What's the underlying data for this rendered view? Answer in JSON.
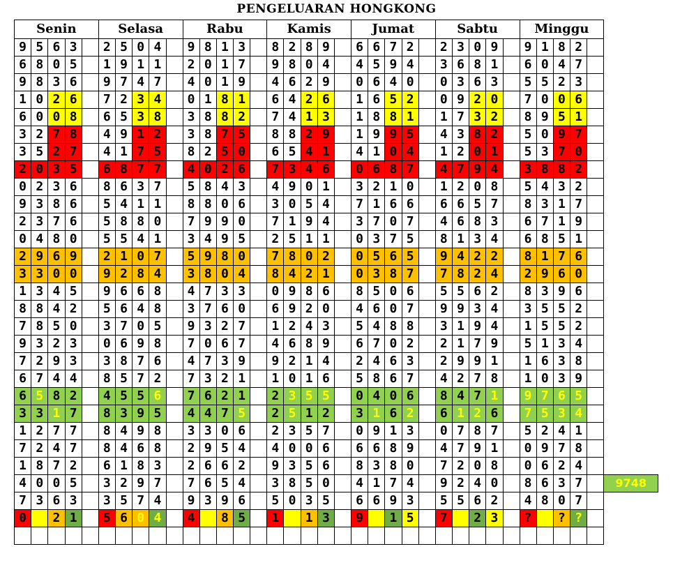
{
  "title": "PENGELUARAN HONGKONG",
  "days": [
    "Senin",
    "Selasa",
    "Rabu",
    "Kamis",
    "Jumat",
    "Sabtu",
    "Minggu"
  ],
  "colors": {
    "red": "#ff0000",
    "yellow": "#ffff00",
    "orange": "#ffc000",
    "green": "#70ad47",
    "light_green": "#92d050"
  },
  "rows": [
    [
      "9563",
      "2504",
      "9813",
      "8289",
      "6672",
      "2309",
      "9182"
    ],
    [
      "6805",
      "1911",
      "2017",
      "9804",
      "4594",
      "3681",
      "6047"
    ],
    [
      "9836",
      "9747",
      "4019",
      "4629",
      "0640",
      "0363",
      "5523"
    ],
    [
      "1026",
      "7234",
      "0181",
      "6426",
      "1652",
      "0920",
      "7006"
    ],
    [
      "6008",
      "6538",
      "3882",
      "7413",
      "1881",
      "1732",
      "8951"
    ],
    [
      "3278",
      "4912",
      "3875",
      "8829",
      "1995",
      "4382",
      "5097"
    ],
    [
      "3527",
      "4175",
      "8250",
      "6541",
      "4104",
      "1201",
      "5370"
    ],
    [
      "2035",
      "6877",
      "4026",
      "7346",
      "0687",
      "4794",
      "3882"
    ],
    [
      "0236",
      "8637",
      "5843",
      "4901",
      "3210",
      "1208",
      "5432"
    ],
    [
      "9386",
      "5411",
      "8806",
      "3054",
      "7166",
      "6657",
      "8317"
    ],
    [
      "2376",
      "5880",
      "7990",
      "7194",
      "3707",
      "4683",
      "6719"
    ],
    [
      "0480",
      "5541",
      "3495",
      "2511",
      "0375",
      "8134",
      "6851"
    ],
    [
      "2969",
      "2107",
      "5980",
      "7802",
      "0565",
      "9422",
      "8176"
    ],
    [
      "3300",
      "9284",
      "3804",
      "8421",
      "0387",
      "7824",
      "2960"
    ],
    [
      "1345",
      "9668",
      "4733",
      "0986",
      "8506",
      "5562",
      "8396"
    ],
    [
      "8842",
      "5648",
      "3760",
      "6920",
      "4607",
      "9934",
      "3552"
    ],
    [
      "7850",
      "3705",
      "9327",
      "1243",
      "5488",
      "3194",
      "1552"
    ],
    [
      "9323",
      "0698",
      "7067",
      "4689",
      "6702",
      "2179",
      "5134"
    ],
    [
      "7293",
      "3876",
      "4739",
      "9214",
      "2463",
      "2991",
      "1638"
    ],
    [
      "6744",
      "8572",
      "7321",
      "1016",
      "5867",
      "4278",
      "1039"
    ],
    [
      "6582",
      "4556",
      "7621",
      "2355",
      "0406",
      "8471",
      "9765"
    ],
    [
      "3317",
      "8395",
      "4475",
      "2512",
      "3162",
      "6126",
      "7534"
    ],
    [
      "1277",
      "8498",
      "3306",
      "2357",
      "0913",
      "0787",
      "5241"
    ],
    [
      "7247",
      "8468",
      "2954",
      "4006",
      "6689",
      "4791",
      "0978"
    ],
    [
      "1872",
      "6183",
      "2662",
      "9356",
      "8380",
      "7208",
      "0624"
    ],
    [
      "4005",
      "3297",
      "7654",
      "3850",
      "4174",
      "9240",
      "8637"
    ],
    [
      "7363",
      "3574",
      "9396",
      "5035",
      "6693",
      "5562",
      "4807"
    ],
    [
      "0521",
      "5604",
      "4585",
      "1513",
      "9215",
      "7123",
      "????"
    ],
    [
      "",
      "",
      "",
      "",
      "",
      "",
      ""
    ]
  ],
  "prediction": "9748",
  "cell_styles": [
    {
      "row": 3,
      "digits": [
        2,
        3
      ],
      "bg": "y"
    },
    {
      "row": 4,
      "digits": [
        2,
        3
      ],
      "bg": "y"
    },
    {
      "row": 5,
      "digits": [
        2,
        3
      ],
      "bg": "r"
    },
    {
      "row": 6,
      "digits": [
        2,
        3
      ],
      "bg": "r"
    },
    {
      "row": 7,
      "digits": [
        0,
        1,
        2,
        3
      ],
      "bg": "r"
    },
    {
      "row": 12,
      "digits": [
        0,
        1,
        2,
        3
      ],
      "bg": "o"
    },
    {
      "row": 13,
      "digits": [
        0,
        1,
        2,
        3
      ],
      "bg": "o"
    },
    {
      "row": 20,
      "digits": [
        0,
        1,
        2,
        3
      ],
      "bg": "lg"
    },
    {
      "row": 21,
      "digits": [
        0,
        1,
        2,
        3
      ],
      "bg": "lg"
    }
  ],
  "yellow_text": {
    "20": [
      [
        0,
        1
      ],
      [
        1,
        3
      ],
      [
        2,
        -1
      ],
      [
        3,
        1,
        2,
        3
      ],
      [
        4,
        -1
      ],
      [
        5,
        3
      ],
      [
        6,
        0,
        1,
        2,
        3
      ]
    ],
    "21": [
      [
        0,
        2
      ],
      [
        1,
        -1
      ],
      [
        2,
        3
      ],
      [
        3,
        1
      ],
      [
        4,
        1,
        3
      ],
      [
        5,
        1,
        2
      ],
      [
        6,
        0,
        1,
        2,
        3
      ]
    ]
  },
  "last_row_bg": [
    [
      "r",
      "y",
      "o",
      "g"
    ],
    [
      "r",
      "o",
      "o",
      "g"
    ],
    [
      "r",
      "y",
      "o",
      "g"
    ],
    [
      "r",
      "y",
      "o",
      "g"
    ],
    [
      "r",
      "y",
      "g",
      "y"
    ],
    [
      "r",
      "y",
      "g",
      "y"
    ],
    [
      "r",
      "y",
      "o",
      "g"
    ]
  ],
  "last_row_fy": [
    [
      1
    ],
    [
      2,
      3
    ],
    [
      1
    ],
    [
      1
    ],
    [
      1
    ],
    [
      1
    ],
    [
      1,
      3
    ]
  ]
}
